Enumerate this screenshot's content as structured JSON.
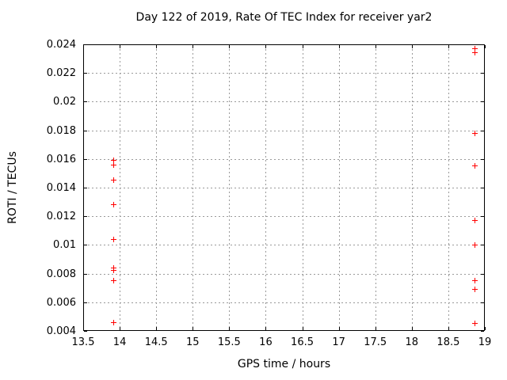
{
  "title": "Day 122 of 2019, Rate Of TEC Index for receiver yar2",
  "colors": {
    "background": "#ffffff",
    "axis": "#000000",
    "grid": "#9a9a9a",
    "marker": "#ff0000",
    "text": "#000000"
  },
  "chart_data": {
    "type": "scatter",
    "title": "Day 122 of 2019, Rate Of TEC Index for receiver yar2",
    "xlabel": "GPS time / hours",
    "ylabel": "ROTI / TECUs",
    "xlim": [
      13.5,
      19
    ],
    "ylim": [
      0.004,
      0.024
    ],
    "xticks": [
      13.5,
      14,
      14.5,
      15,
      15.5,
      16,
      16.5,
      17,
      17.5,
      18,
      18.5,
      19
    ],
    "xtick_labels": [
      "13.5",
      "14",
      "14.5",
      "15",
      "15.5",
      "16",
      "16.5",
      "17",
      "17.5",
      "18",
      "18.5",
      "19"
    ],
    "yticks": [
      0.004,
      0.006,
      0.008,
      0.01,
      0.012,
      0.014,
      0.016,
      0.018,
      0.02,
      0.022,
      0.024
    ],
    "ytick_labels": [
      "0.004",
      "0.006",
      "0.008",
      "0.01",
      "0.012",
      "0.014",
      "0.016",
      "0.018",
      "0.02",
      "0.022",
      "0.024"
    ],
    "grid": true,
    "grid_style": "dotted",
    "legend_position": "none",
    "marker": "plus",
    "marker_color": "#ff0000",
    "series": [
      {
        "name": "ROTI",
        "color": "#ff0000",
        "points": [
          [
            13.92,
            0.0159
          ],
          [
            13.92,
            0.0156
          ],
          [
            13.92,
            0.0145
          ],
          [
            13.92,
            0.0128
          ],
          [
            13.92,
            0.0104
          ],
          [
            13.92,
            0.0084
          ],
          [
            13.92,
            0.0082
          ],
          [
            13.92,
            0.0075
          ],
          [
            13.92,
            0.0046
          ],
          [
            18.86,
            0.0237
          ],
          [
            18.86,
            0.0234
          ],
          [
            18.86,
            0.0178
          ],
          [
            18.86,
            0.0155
          ],
          [
            18.86,
            0.0117
          ],
          [
            18.86,
            0.01
          ],
          [
            18.86,
            0.0075
          ],
          [
            18.86,
            0.0069
          ],
          [
            18.86,
            0.0045
          ]
        ]
      }
    ]
  }
}
